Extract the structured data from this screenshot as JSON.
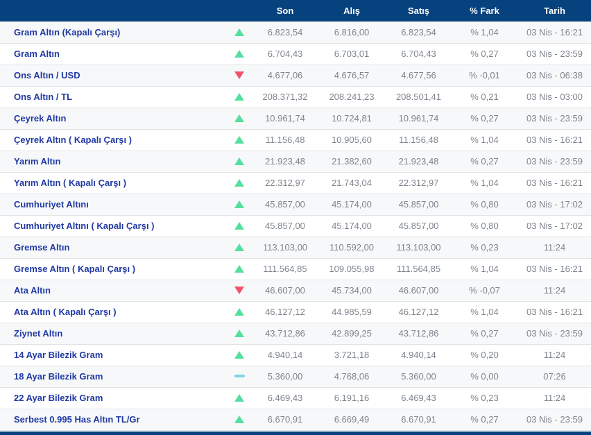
{
  "table": {
    "columns": [
      "Son",
      "Alış",
      "Satış",
      "% Fark",
      "Tarih"
    ],
    "rows": [
      {
        "name": "Gram Altın (Kapalı Çarşı)",
        "trend": "up",
        "son": "6.823,54",
        "alis": "6.816,00",
        "satis": "6.823,54",
        "fark": "% 1,04",
        "tarih": "03 Nis - 16:21"
      },
      {
        "name": "Gram Altın",
        "trend": "up",
        "son": "6.704,43",
        "alis": "6.703,01",
        "satis": "6.704,43",
        "fark": "% 0,27",
        "tarih": "03 Nis - 23:59"
      },
      {
        "name": "Ons Altın / USD",
        "trend": "down",
        "son": "4.677,06",
        "alis": "4.676,57",
        "satis": "4.677,56",
        "fark": "% -0,01",
        "tarih": "03 Nis - 06:38"
      },
      {
        "name": "Ons Altın / TL",
        "trend": "up",
        "son": "208.371,32",
        "alis": "208.241,23",
        "satis": "208.501,41",
        "fark": "% 0,21",
        "tarih": "03 Nis - 03:00"
      },
      {
        "name": "Çeyrek Altın",
        "trend": "up",
        "son": "10.961,74",
        "alis": "10.724,81",
        "satis": "10.961,74",
        "fark": "% 0,27",
        "tarih": "03 Nis - 23:59"
      },
      {
        "name": "Çeyrek Altın ( Kapalı Çarşı )",
        "trend": "up",
        "son": "11.156,48",
        "alis": "10.905,60",
        "satis": "11.156,48",
        "fark": "% 1,04",
        "tarih": "03 Nis - 16:21"
      },
      {
        "name": "Yarım Altın",
        "trend": "up",
        "son": "21.923,48",
        "alis": "21.382,60",
        "satis": "21.923,48",
        "fark": "% 0,27",
        "tarih": "03 Nis - 23:59"
      },
      {
        "name": "Yarım Altın ( Kapalı Çarşı )",
        "trend": "up",
        "son": "22.312,97",
        "alis": "21.743,04",
        "satis": "22.312,97",
        "fark": "% 1,04",
        "tarih": "03 Nis - 16:21"
      },
      {
        "name": "Cumhuriyet Altını",
        "trend": "up",
        "son": "45.857,00",
        "alis": "45.174,00",
        "satis": "45.857,00",
        "fark": "% 0,80",
        "tarih": "03 Nis - 17:02"
      },
      {
        "name": "Cumhuriyet Altını ( Kapalı Çarşı )",
        "trend": "up",
        "son": "45.857,00",
        "alis": "45.174,00",
        "satis": "45.857,00",
        "fark": "% 0,80",
        "tarih": "03 Nis - 17:02"
      },
      {
        "name": "Gremse Altın",
        "trend": "up",
        "son": "113.103,00",
        "alis": "110.592,00",
        "satis": "113.103,00",
        "fark": "% 0,23",
        "tarih": "11:24"
      },
      {
        "name": "Gremse Altın ( Kapalı Çarşı )",
        "trend": "up",
        "son": "111.564,85",
        "alis": "109.055,98",
        "satis": "111.564,85",
        "fark": "% 1,04",
        "tarih": "03 Nis - 16:21"
      },
      {
        "name": "Ata Altın",
        "trend": "down",
        "son": "46.607,00",
        "alis": "45.734,00",
        "satis": "46.607,00",
        "fark": "% -0,07",
        "tarih": "11:24"
      },
      {
        "name": "Ata Altın ( Kapalı Çarşı )",
        "trend": "up",
        "son": "46.127,12",
        "alis": "44.985,59",
        "satis": "46.127,12",
        "fark": "% 1,04",
        "tarih": "03 Nis - 16:21"
      },
      {
        "name": "Ziynet Altın",
        "trend": "up",
        "son": "43.712,86",
        "alis": "42.899,25",
        "satis": "43.712,86",
        "fark": "% 0,27",
        "tarih": "03 Nis - 23:59"
      },
      {
        "name": "14 Ayar Bilezik Gram",
        "trend": "up",
        "son": "4.940,14",
        "alis": "3.721,18",
        "satis": "4.940,14",
        "fark": "% 0,20",
        "tarih": "11:24"
      },
      {
        "name": "18 Ayar Bilezik Gram",
        "trend": "flat",
        "son": "5.360,00",
        "alis": "4.768,06",
        "satis": "5.360,00",
        "fark": "% 0,00",
        "tarih": "07:26"
      },
      {
        "name": "22 Ayar Bilezik Gram",
        "trend": "up",
        "son": "6.469,43",
        "alis": "6.191,16",
        "satis": "6.469,43",
        "fark": "% 0,23",
        "tarih": "11:24"
      },
      {
        "name": "Serbest 0.995 Has Altın TL/Gr",
        "trend": "up",
        "son": "6.670,91",
        "alis": "6.669,49",
        "satis": "6.670,91",
        "fark": "% 0,27",
        "tarih": "03 Nis - 23:59"
      }
    ]
  },
  "colors": {
    "header_bg": "#06427d",
    "name_color": "#2039a3",
    "value_color": "#7e858e",
    "up_color": "#55df9f",
    "down_color": "#f4516c",
    "flat_color": "#7ed3e2",
    "row_alt": "#f7f8f9",
    "row_border": "#e2e3e5"
  }
}
